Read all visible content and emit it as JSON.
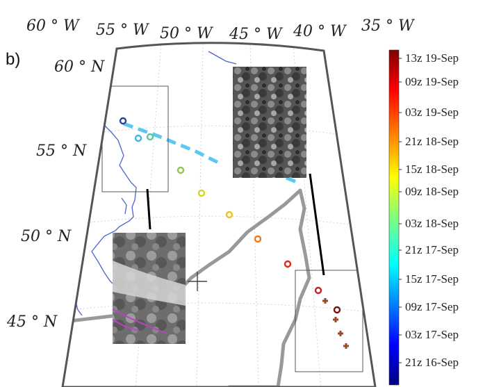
{
  "panel_label": "b)",
  "lon_labels": [
    "60 ° W",
    "55 ° W",
    "50 ° W",
    "45 ° W",
    "40 ° W",
    "35 ° W"
  ],
  "lat_labels": [
    "60 ° N",
    "55 ° N",
    "50 ° N",
    "45 ° N"
  ],
  "colorbar": {
    "labels": [
      "13z 19-Sep",
      "09z 19-Sep",
      "03z 19-Sep",
      "21z 18-Sep",
      "15z 18-Sep",
      "09z 18-Sep",
      "03z 18-Sep",
      "21z 17-Sep",
      "15z 17-Sep",
      "09z 17-Sep",
      "03z 17-Sep",
      "21z 16-Sep"
    ],
    "colormap": "jet",
    "top_color": "#7f0000",
    "bottom_color": "#00007f"
  },
  "colors": {
    "frame": "#555555",
    "coast": "#4a64c8",
    "track": "#999999",
    "segment": "#000000",
    "dashed_trail": "#5ac8f0"
  },
  "markers": [
    {
      "label": "21z 16-Sep",
      "color": "#2a3fa0"
    },
    {
      "label": "15z 17-Sep",
      "color": "#3fb4e6"
    },
    {
      "label": "21z 17-Sep",
      "color": "#5ac79a"
    },
    {
      "label": "03z 18-Sep",
      "color": "#8dc850"
    },
    {
      "label": "09z 18-Sep",
      "color": "#d6d61e"
    },
    {
      "label": "15z 18-Sep",
      "color": "#f0c020"
    },
    {
      "label": "21z 18-Sep",
      "color": "#f07818"
    },
    {
      "label": "03z 19-Sep",
      "color": "#e02818"
    },
    {
      "label": "09z 19-Sep",
      "color": "#c81e1e"
    },
    {
      "label": "13z 19-Sep",
      "color": "#7a1010"
    }
  ],
  "images": [
    {
      "name": "satellite-image-north",
      "tone": "dark"
    },
    {
      "name": "satellite-image-south",
      "tone": "light"
    }
  ]
}
